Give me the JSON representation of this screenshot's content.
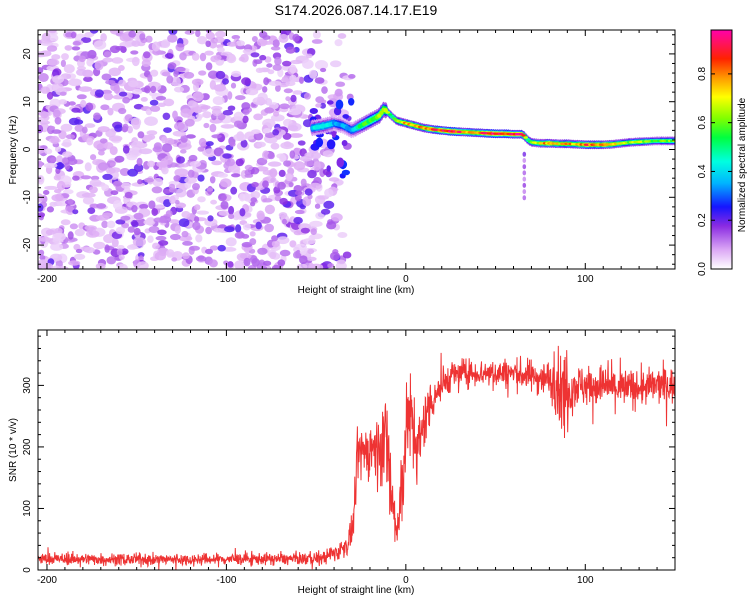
{
  "title": "S174.2026.087.14.17.E19",
  "chart_data": [
    {
      "type": "heatmap",
      "title": "S174.2026.087.14.17.E19",
      "xlabel": "Height of straight line (km)",
      "ylabel": "Frequency (Hz)",
      "xlim": [
        -205,
        150
      ],
      "ylim": [
        -25,
        25
      ],
      "x_ticks": [
        -200,
        -100,
        0,
        100
      ],
      "y_ticks": [
        -20,
        -10,
        0,
        10,
        20
      ],
      "noise_region": {
        "x": [
          -205,
          -30
        ],
        "y": [
          -25,
          25
        ],
        "description_level": 0.05
      },
      "ridge": {
        "x": [
          -52,
          -45,
          -40,
          -35,
          -30,
          -25,
          -20,
          -15,
          -12,
          -8,
          -5,
          0,
          5,
          10,
          15,
          20,
          25,
          30,
          35,
          40,
          45,
          50,
          55,
          60,
          65,
          68,
          70,
          75,
          80,
          85,
          90,
          95,
          100,
          105,
          110,
          115,
          120,
          125,
          130,
          135,
          140,
          145,
          150
        ],
        "freq": [
          4.5,
          5.0,
          5.5,
          5.0,
          4.0,
          5.0,
          6.0,
          7.0,
          8.5,
          7.0,
          6.0,
          5.5,
          5.0,
          4.5,
          4.2,
          4.0,
          3.8,
          3.7,
          3.6,
          3.5,
          3.4,
          3.3,
          3.3,
          3.2,
          3.2,
          2.0,
          1.5,
          1.3,
          1.3,
          1.2,
          1.2,
          1.1,
          1.0,
          1.0,
          1.0,
          1.1,
          1.3,
          1.5,
          1.6,
          1.7,
          1.8,
          1.8,
          1.8
        ],
        "amp": [
          0.35,
          0.4,
          0.3,
          0.3,
          0.3,
          0.5,
          0.55,
          0.6,
          0.7,
          0.5,
          0.6,
          0.75,
          0.8,
          0.75,
          0.85,
          0.9,
          1.0,
          0.9,
          0.8,
          0.85,
          0.95,
          1.0,
          0.9,
          0.95,
          0.9,
          0.5,
          0.6,
          0.7,
          0.85,
          0.7,
          0.8,
          0.7,
          0.9,
          0.8,
          0.85,
          0.7,
          0.7,
          0.6,
          0.65,
          0.6,
          0.55,
          0.6,
          0.6
        ]
      }
    },
    {
      "type": "line",
      "xlabel": "Height of straight line (km)",
      "ylabel": "SNR (10 * v/v)",
      "xlim": [
        -205,
        150
      ],
      "ylim": [
        0,
        390
      ],
      "x_ticks": [
        -200,
        -100,
        0,
        100
      ],
      "y_ticks": [
        0,
        100,
        200,
        300
      ],
      "series": [
        {
          "name": "SNR",
          "color": "#ee3333",
          "x": [
            -205,
            -180,
            -150,
            -120,
            -90,
            -60,
            -45,
            -38,
            -33,
            -30,
            -28,
            -27,
            -25,
            -20,
            -15,
            -12,
            -10,
            -8,
            -5,
            -3,
            0,
            2,
            5,
            8,
            10,
            12,
            15,
            20,
            25,
            30,
            35,
            40,
            50,
            60,
            70,
            80,
            85,
            88,
            90,
            92,
            95,
            100,
            110,
            120,
            130,
            140,
            150
          ],
          "mean": [
            18,
            18,
            17,
            17,
            18,
            18,
            20,
            30,
            40,
            60,
            120,
            180,
            190,
            195,
            200,
            210,
            205,
            120,
            60,
            90,
            230,
            250,
            220,
            200,
            240,
            260,
            280,
            300,
            315,
            320,
            320,
            320,
            320,
            320,
            315,
            310,
            300,
            280,
            300,
            295,
            300,
            300,
            300,
            295,
            295,
            300,
            300
          ],
          "noise": [
            8,
            8,
            8,
            8,
            8,
            8,
            10,
            12,
            15,
            20,
            30,
            35,
            35,
            40,
            45,
            60,
            80,
            50,
            40,
            60,
            60,
            60,
            55,
            45,
            40,
            35,
            30,
            25,
            20,
            20,
            18,
            18,
            20,
            20,
            22,
            25,
            45,
            70,
            60,
            35,
            30,
            28,
            28,
            28,
            25,
            25,
            25
          ]
        }
      ]
    }
  ],
  "colorbar": {
    "label": "Normalized spectral amplitude",
    "ticks": [
      "0.0",
      "0.2",
      "0.4",
      "0.6",
      "0.8"
    ],
    "range": [
      0,
      0.98
    ]
  }
}
